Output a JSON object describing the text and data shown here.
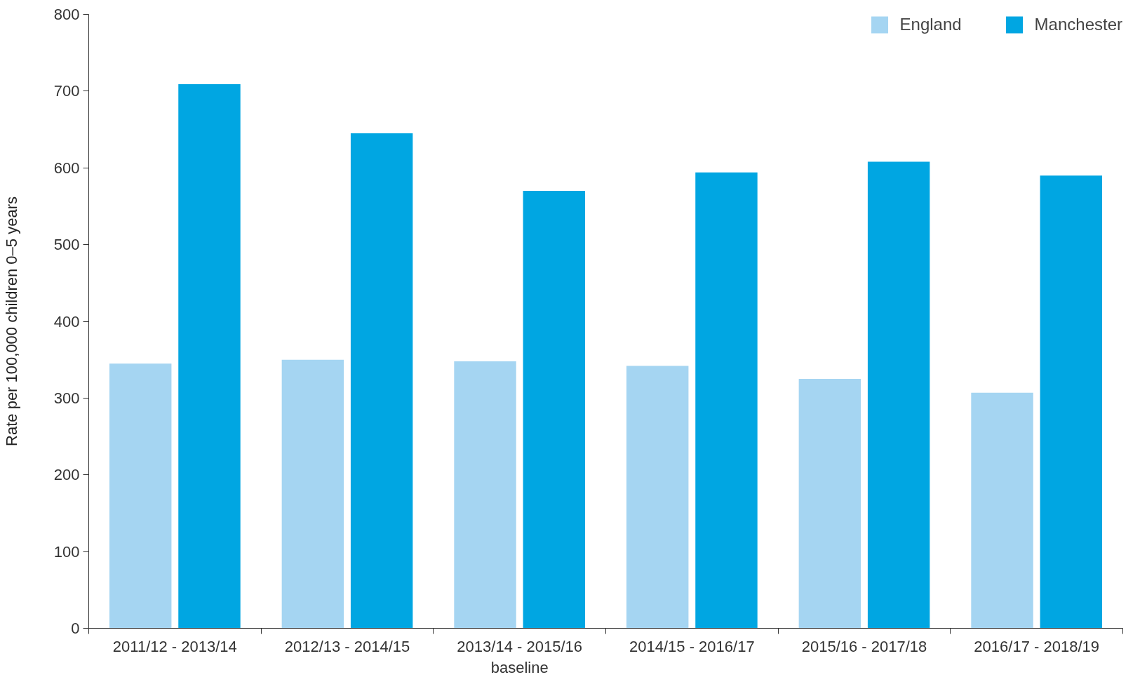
{
  "chart_data": {
    "type": "bar",
    "ylabel": "Rate per 100,000 children 0–5 years",
    "categories": [
      "2011/12 - 2013/14",
      "2012/13 - 2014/15",
      "2013/14 - 2015/16\nbaseline",
      "2014/15 - 2016/17",
      "2015/16 - 2017/18",
      "2016/17 - 2018/19"
    ],
    "series": [
      {
        "name": "England",
        "color": "#a5d5f2",
        "values": [
          345,
          350,
          348,
          342,
          325,
          307
        ]
      },
      {
        "name": "Manchester",
        "color": "#00a6e2",
        "values": [
          709,
          645,
          570,
          594,
          608,
          590
        ]
      }
    ],
    "ylim": [
      0,
      800
    ],
    "yticks": [
      0,
      100,
      200,
      300,
      400,
      500,
      600,
      700,
      800
    ],
    "grid": false,
    "legend": "top right"
  }
}
